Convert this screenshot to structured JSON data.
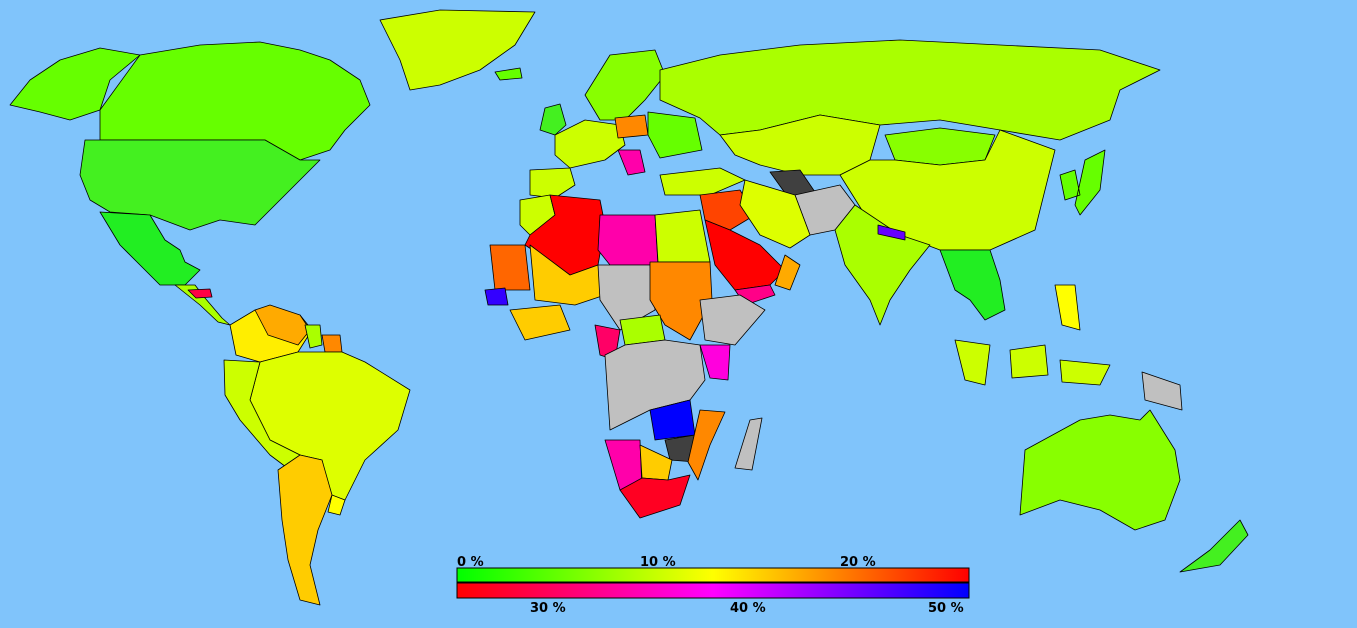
{
  "map": {
    "ocean_color": "#80c4fb",
    "no_data_color": "#c0c0c0",
    "dark_color": "#404040",
    "regions": [
      {
        "name": "alaska",
        "color": "#66ff00"
      },
      {
        "name": "canada",
        "color": "#66ff00"
      },
      {
        "name": "greenland",
        "color": "#ccff00"
      },
      {
        "name": "usa",
        "color": "#44f020"
      },
      {
        "name": "mexico",
        "color": "#22ee22"
      },
      {
        "name": "central-america",
        "color": "#aaff00"
      },
      {
        "name": "honduras",
        "color": "#ff0044"
      },
      {
        "name": "colombia-venezuela",
        "color": "#ffee00"
      },
      {
        "name": "venezuela",
        "color": "#ffaa00"
      },
      {
        "name": "guyana",
        "color": "#aaff00"
      },
      {
        "name": "suriname",
        "color": "#ff8800"
      },
      {
        "name": "brazil",
        "color": "#ddff00"
      },
      {
        "name": "peru-bolivia",
        "color": "#ccff00"
      },
      {
        "name": "argentina",
        "color": "#ffcc00"
      },
      {
        "name": "uruguay",
        "color": "#ffff00"
      },
      {
        "name": "iceland",
        "color": "#66ff00"
      },
      {
        "name": "uk-ireland",
        "color": "#44f020"
      },
      {
        "name": "scandinavia",
        "color": "#88ff00"
      },
      {
        "name": "western-europe",
        "color": "#ccff00"
      },
      {
        "name": "iberia",
        "color": "#ccff00"
      },
      {
        "name": "poland",
        "color": "#ff8800"
      },
      {
        "name": "ukraine",
        "color": "#66ff00"
      },
      {
        "name": "balkans",
        "color": "#ff00aa"
      },
      {
        "name": "russia",
        "color": "#aaff00"
      },
      {
        "name": "kazakhstan-central-asia",
        "color": "#ccff00"
      },
      {
        "name": "turkmenistan",
        "color": "#404040"
      },
      {
        "name": "china",
        "color": "#ccff00"
      },
      {
        "name": "mongolia",
        "color": "#88ff00"
      },
      {
        "name": "korea-japan",
        "color": "#66ff00"
      },
      {
        "name": "india",
        "color": "#aaff00"
      },
      {
        "name": "pakistan-afghanistan",
        "color": "#c0c0c0"
      },
      {
        "name": "nepal",
        "color": "#6600ff"
      },
      {
        "name": "southeast-asia",
        "color": "#22ee22"
      },
      {
        "name": "indonesia",
        "color": "#ccff00"
      },
      {
        "name": "philippines",
        "color": "#ffff00"
      },
      {
        "name": "turkey",
        "color": "#ccff00"
      },
      {
        "name": "iran",
        "color": "#ddff00"
      },
      {
        "name": "saudi-arabia",
        "color": "#ff0000"
      },
      {
        "name": "yemen",
        "color": "#ff0088"
      },
      {
        "name": "oman",
        "color": "#ffaa00"
      },
      {
        "name": "syria-iraq",
        "color": "#ff4400"
      },
      {
        "name": "morocco",
        "color": "#ccff00"
      },
      {
        "name": "algeria",
        "color": "#ff0000"
      },
      {
        "name": "libya",
        "color": "#ff00aa"
      },
      {
        "name": "egypt",
        "color": "#ccff00"
      },
      {
        "name": "mauritania",
        "color": "#ff6600"
      },
      {
        "name": "mali-niger",
        "color": "#ffcc00"
      },
      {
        "name": "chad-sudan-nodata",
        "color": "#c0c0c0"
      },
      {
        "name": "sudan",
        "color": "#ff8800"
      },
      {
        "name": "senegal",
        "color": "#3300ff"
      },
      {
        "name": "west-africa-coast",
        "color": "#ffcc00"
      },
      {
        "name": "cameroon",
        "color": "#ff0066"
      },
      {
        "name": "car",
        "color": "#aaff00"
      },
      {
        "name": "central-africa-nodata",
        "color": "#c0c0c0"
      },
      {
        "name": "ethiopia-somalia",
        "color": "#c0c0c0"
      },
      {
        "name": "kenya",
        "color": "#ff00dd"
      },
      {
        "name": "zambia",
        "color": "#0000ff"
      },
      {
        "name": "zimbabwe",
        "color": "#404040"
      },
      {
        "name": "mozambique",
        "color": "#ff8800"
      },
      {
        "name": "namibia",
        "color": "#ff00aa"
      },
      {
        "name": "botswana",
        "color": "#ffcc00"
      },
      {
        "name": "south-africa",
        "color": "#ff0022"
      },
      {
        "name": "madagascar",
        "color": "#c0c0c0"
      },
      {
        "name": "australia",
        "color": "#88ff00"
      },
      {
        "name": "new-zealand",
        "color": "#44f020"
      },
      {
        "name": "papua-nodata",
        "color": "#c0c0c0"
      }
    ]
  },
  "legend": {
    "top_labels": [
      "0 %",
      "10 %",
      "20 %"
    ],
    "bottom_labels": [
      "30 %",
      "40 %",
      "50 %"
    ],
    "top_stops": [
      "#00ff00",
      "#ffff00",
      "#ff0000"
    ],
    "bottom_stops": [
      "#ff0000",
      "#ff00ff",
      "#0000ff"
    ]
  }
}
